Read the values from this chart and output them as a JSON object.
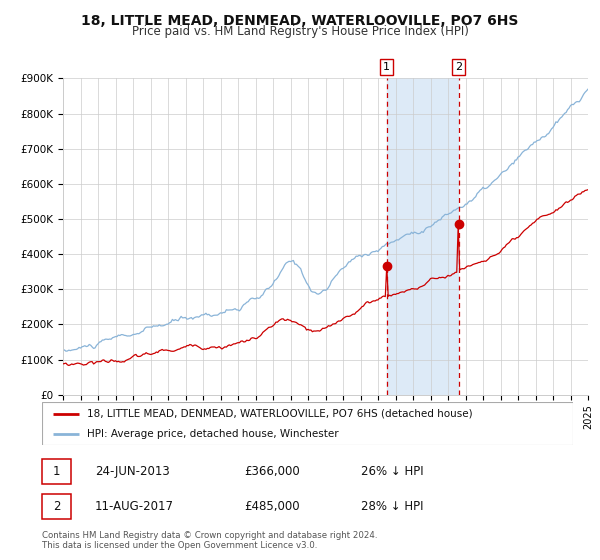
{
  "title": "18, LITTLE MEAD, DENMEAD, WATERLOOVILLE, PO7 6HS",
  "subtitle": "Price paid vs. HM Land Registry's House Price Index (HPI)",
  "ylim": [
    0,
    900000
  ],
  "yticks": [
    0,
    100000,
    200000,
    300000,
    400000,
    500000,
    600000,
    700000,
    800000,
    900000
  ],
  "ytick_labels": [
    "£0",
    "£100K",
    "£200K",
    "£300K",
    "£400K",
    "£500K",
    "£600K",
    "£700K",
    "£800K",
    "£900K"
  ],
  "hpi_color": "#8ab4d8",
  "price_color": "#cc0000",
  "vspan_color": "#ddeaf7",
  "marker_color": "#cc0000",
  "vline_color": "#cc0000",
  "ann1_year": 2013.5,
  "ann1_price": 366000,
  "ann2_year": 2017.6,
  "ann2_price": 485000,
  "legend_line1": "18, LITTLE MEAD, DENMEAD, WATERLOOVILLE, PO7 6HS (detached house)",
  "legend_line2": "HPI: Average price, detached house, Winchester",
  "table_row1": [
    "1",
    "24-JUN-2013",
    "£366,000",
    "26% ↓ HPI"
  ],
  "table_row2": [
    "2",
    "11-AUG-2017",
    "£485,000",
    "28% ↓ HPI"
  ],
  "footnote": "Contains HM Land Registry data © Crown copyright and database right 2024.\nThis data is licensed under the Open Government Licence v3.0.",
  "xstart_year": 1995,
  "xend_year": 2025,
  "hpi_seed": 10,
  "price_seed": 20
}
